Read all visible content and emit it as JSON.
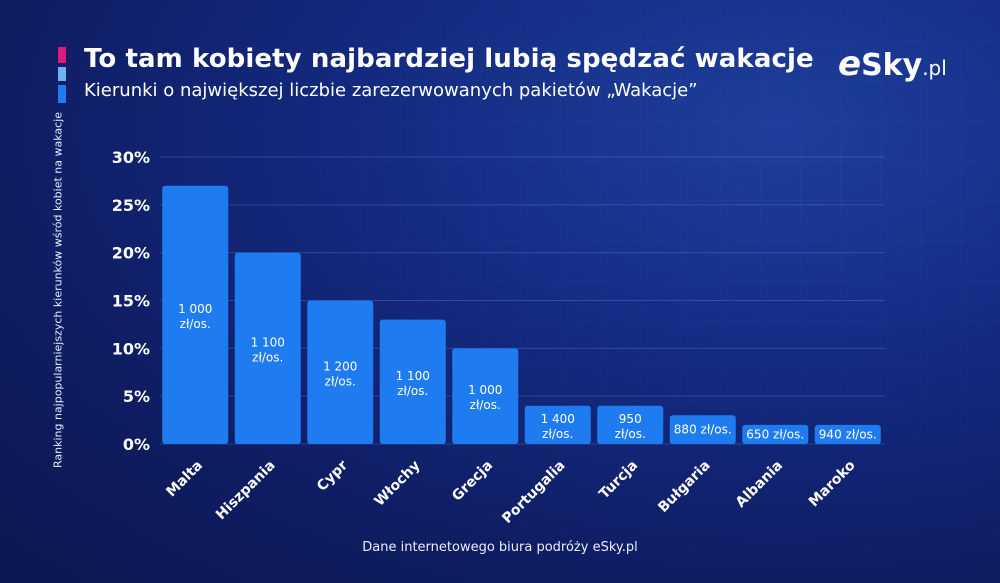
{
  "header": {
    "title": "To tam kobiety najbardziej lubią spędzać wakacje",
    "subtitle": "Kierunki o największej liczbie zarezerwowanych pakietów „Wakacje”"
  },
  "logo": {
    "e": "e",
    "sky": "Sky",
    "pl": ".pl"
  },
  "footer": {
    "source": "Dane internetowego biura podróży eSky.pl"
  },
  "colors": {
    "accent_pink": "#e0197d",
    "accent_light_blue": "#6ab2f5",
    "accent_blue": "#1f7cf0",
    "bar": "#1f7cf0"
  },
  "chart_data": {
    "type": "bar",
    "title": "To tam kobiety najbardziej lubią spędzać wakacje",
    "ylabel": "Ranking najpopularniejszych kierunków wśród kobiet na wakacje",
    "xlabel": "",
    "ylim": [
      0,
      30
    ],
    "yticks": [
      0,
      5,
      10,
      15,
      20,
      25,
      30
    ],
    "ytick_labels": [
      "0%",
      "5%",
      "10%",
      "15%",
      "20%",
      "25%",
      "30%"
    ],
    "grid": true,
    "legend": "none",
    "categories": [
      "Malta",
      "Hiszpania",
      "Cypr",
      "Włochy",
      "Grecja",
      "Portugalia",
      "Turcja",
      "Bułgaria",
      "Albania",
      "Maroko"
    ],
    "values": [
      27,
      20,
      15,
      13,
      10,
      4,
      4,
      3,
      2,
      2
    ],
    "bar_labels": [
      "1 000 zł/os.",
      "1 100 zł/os.",
      "1 200 zł/os.",
      "1 100 zł/os.",
      "1 000 zł/os.",
      "1 400 zł/os.",
      "950 zł/os.",
      "880 zł/os.",
      "650 zł/os.",
      "940 zł/os."
    ]
  }
}
